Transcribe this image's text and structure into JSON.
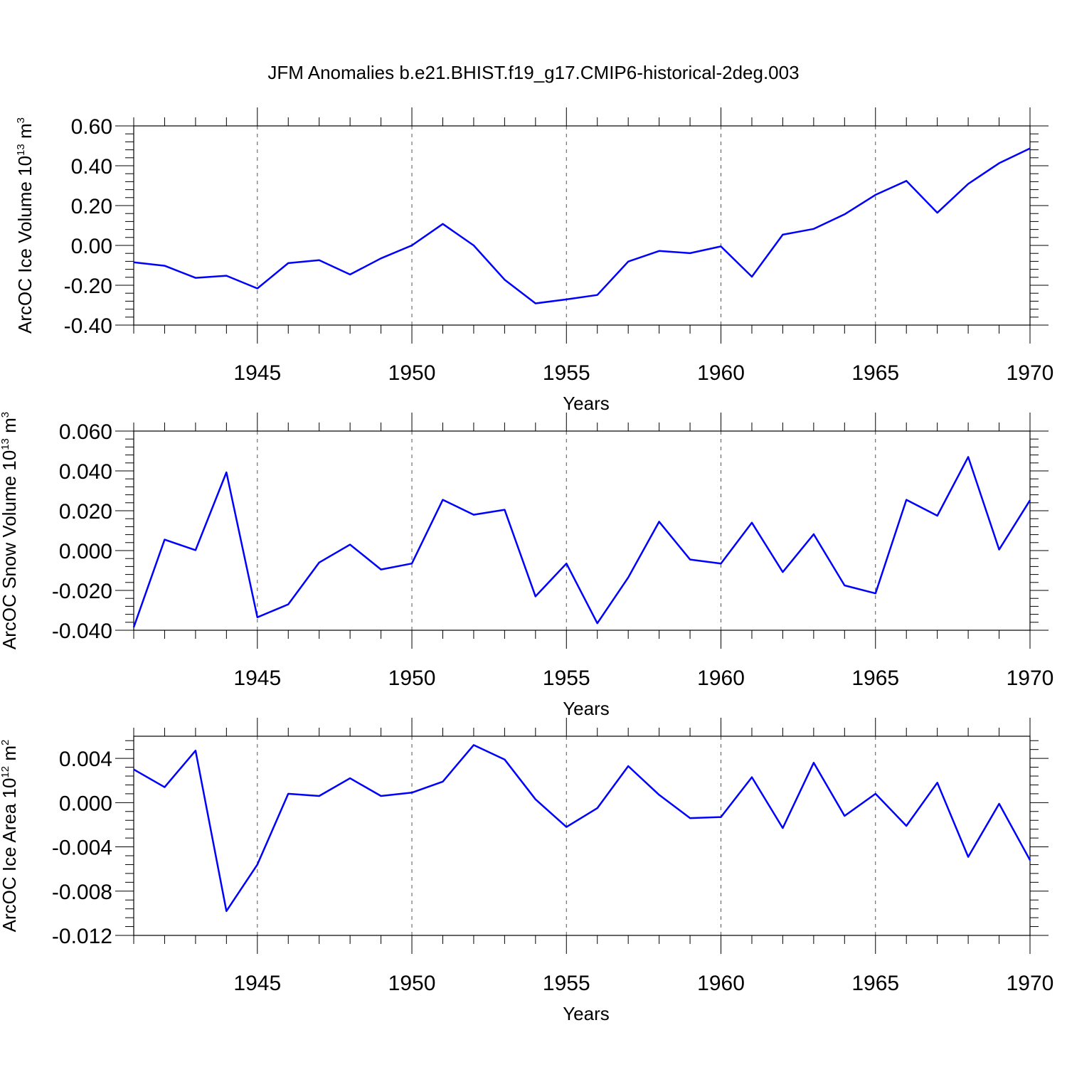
{
  "chart_data": [
    {
      "type": "line",
      "title": "JFM Anomalies b.e21.BHIST.f19_g17.CMIP6-historical-2deg.003",
      "xlabel": "Years",
      "ylabel": "ArcOC Ice Volume 10",
      "ylabel_exp": "13",
      "ylabel_unit": "m",
      "ylabel_unit_exp": "3",
      "xlim": [
        1941,
        1970
      ],
      "ylim": [
        -0.4,
        0.6
      ],
      "xticks": [
        1945,
        1950,
        1955,
        1960,
        1965,
        1970
      ],
      "xtick_labels": [
        "1945",
        "1950",
        "1955",
        "1960",
        "1965",
        "1970"
      ],
      "yticks": [
        -0.4,
        -0.2,
        0.0,
        0.2,
        0.4,
        0.6
      ],
      "ytick_labels": [
        "-0.40",
        "-0.20",
        "0.00",
        "0.20",
        "0.40",
        "0.60"
      ],
      "grid": "dashed vertical at labeled years",
      "color": "#0000ff",
      "x": [
        1941,
        1942,
        1943,
        1944,
        1945,
        1946,
        1947,
        1948,
        1949,
        1950,
        1951,
        1952,
        1953,
        1954,
        1955,
        1956,
        1957,
        1958,
        1959,
        1960,
        1961,
        1962,
        1963,
        1964,
        1965,
        1966,
        1967,
        1968,
        1969,
        1970
      ],
      "values": [
        -0.085,
        -0.102,
        -0.163,
        -0.152,
        -0.216,
        -0.089,
        -0.074,
        -0.146,
        -0.065,
        0.0,
        0.108,
        0.0,
        -0.172,
        -0.291,
        -0.271,
        -0.249,
        -0.081,
        -0.028,
        -0.039,
        -0.005,
        -0.157,
        0.054,
        0.083,
        0.156,
        0.254,
        0.324,
        0.164,
        0.309,
        0.413,
        0.487
      ]
    },
    {
      "type": "line",
      "xlabel": "Years",
      "ylabel": "ArcOC Snow Volume 10",
      "ylabel_exp": "13",
      "ylabel_unit": "m",
      "ylabel_unit_exp": "3",
      "xlim": [
        1941,
        1970
      ],
      "ylim": [
        -0.04,
        0.06
      ],
      "xticks": [
        1945,
        1950,
        1955,
        1960,
        1965,
        1970
      ],
      "xtick_labels": [
        "1945",
        "1950",
        "1955",
        "1960",
        "1965",
        "1970"
      ],
      "yticks": [
        -0.04,
        -0.02,
        0.0,
        0.02,
        0.04,
        0.06
      ],
      "ytick_labels": [
        "-0.040",
        "-0.020",
        "0.000",
        "0.020",
        "0.040",
        "0.060"
      ],
      "grid": "dashed vertical at labeled years",
      "color": "#0000ff",
      "x": [
        1941,
        1942,
        1943,
        1944,
        1945,
        1946,
        1947,
        1948,
        1949,
        1950,
        1951,
        1952,
        1953,
        1954,
        1955,
        1956,
        1957,
        1958,
        1959,
        1960,
        1961,
        1962,
        1963,
        1964,
        1965,
        1966,
        1967,
        1968,
        1969,
        1970
      ],
      "values": [
        -0.0385,
        0.0055,
        0.0002,
        0.0393,
        -0.0335,
        -0.027,
        -0.006,
        0.003,
        -0.0095,
        -0.0065,
        0.0255,
        0.018,
        0.0205,
        -0.023,
        -0.0065,
        -0.0365,
        -0.0135,
        0.0145,
        -0.0045,
        -0.0065,
        0.014,
        -0.0108,
        0.0082,
        -0.0175,
        -0.0215,
        0.0255,
        0.0175,
        0.047,
        0.0005,
        0.0253
      ]
    },
    {
      "type": "line",
      "xlabel": "Years",
      "ylabel": "ArcOC Ice Area 10",
      "ylabel_exp": "12",
      "ylabel_unit": "m",
      "ylabel_unit_exp": "2",
      "xlim": [
        1941,
        1970
      ],
      "ylim": [
        -0.012,
        0.006
      ],
      "xticks": [
        1945,
        1950,
        1955,
        1960,
        1965,
        1970
      ],
      "xtick_labels": [
        "1945",
        "1950",
        "1955",
        "1960",
        "1965",
        "1970"
      ],
      "yticks": [
        -0.012,
        -0.008,
        -0.004,
        0.0,
        0.004
      ],
      "ytick_labels": [
        "-0.012",
        "-0.008",
        "-0.004",
        "0.000",
        "0.004"
      ],
      "grid": "dashed vertical at labeled years",
      "color": "#0000ff",
      "x": [
        1941,
        1942,
        1943,
        1944,
        1945,
        1946,
        1947,
        1948,
        1949,
        1950,
        1951,
        1952,
        1953,
        1954,
        1955,
        1956,
        1957,
        1958,
        1959,
        1960,
        1961,
        1962,
        1963,
        1964,
        1965,
        1966,
        1967,
        1968,
        1969,
        1970
      ],
      "values": [
        0.003,
        0.0014,
        0.0047,
        -0.0098,
        -0.0056,
        0.0008,
        0.0006,
        0.0022,
        0.0006,
        0.0009,
        0.0019,
        0.0052,
        0.0039,
        0.0003,
        -0.0022,
        -0.0005,
        0.0033,
        0.0007,
        -0.0014,
        -0.0013,
        0.0023,
        -0.0023,
        0.0036,
        -0.0012,
        0.0008,
        -0.0021,
        0.0018,
        -0.0049,
        -0.0001,
        -0.0052
      ]
    }
  ]
}
